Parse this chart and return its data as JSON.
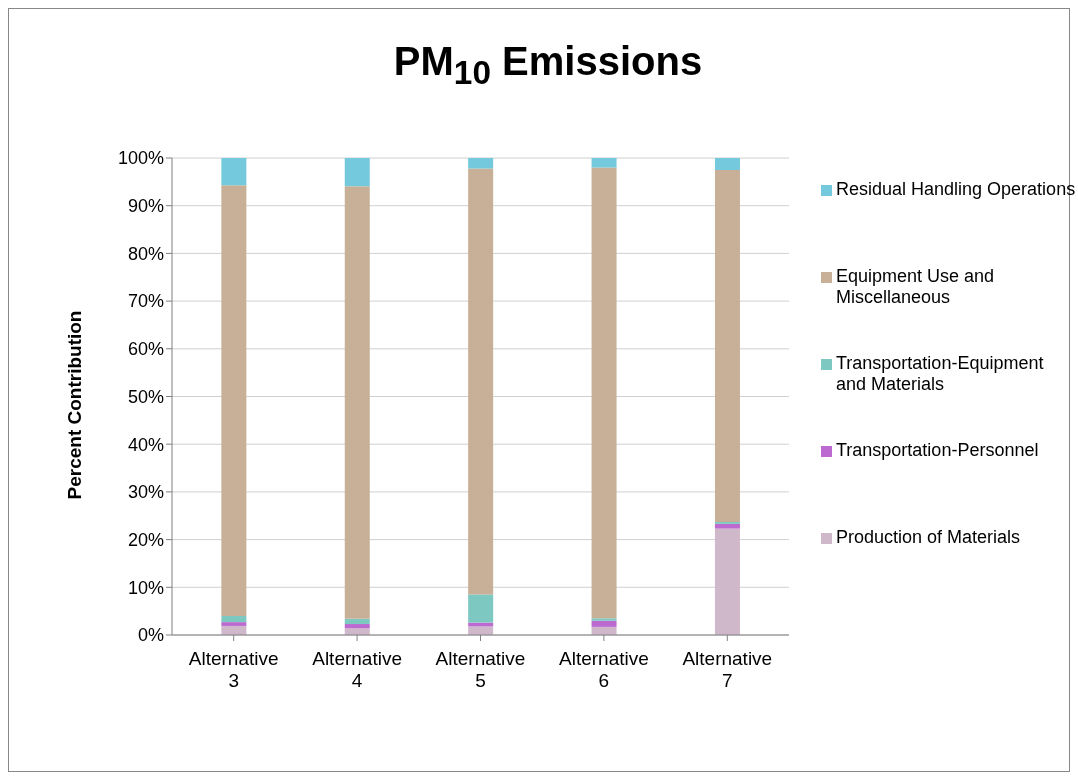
{
  "chart_data": {
    "type": "bar",
    "title": "PM$_{10}$ Emissions",
    "ylabel": "Percent Contribution",
    "categories": [
      "Alternative 3",
      "Alternative 4",
      "Alternative 5",
      "Alternative 6",
      "Alternative 7"
    ],
    "stacked": true,
    "series": [
      {
        "name": "Production of Materials",
        "color": "#d0b8cb",
        "values": [
          1.9,
          1.4,
          1.8,
          1.7,
          22.3
        ]
      },
      {
        "name": "Transportation-Personnel",
        "color": "#bd6ad0",
        "values": [
          0.8,
          0.9,
          0.8,
          1.3,
          1.0
        ]
      },
      {
        "name": "Transportation-Equipment and Materials",
        "color": "#7dc8c0",
        "values": [
          1.3,
          1.1,
          5.9,
          0.5,
          0.4
        ]
      },
      {
        "name": "Equipment Use and Miscellaneous",
        "color": "#c7b097",
        "values": [
          90.3,
          90.7,
          89.3,
          94.5,
          73.8
        ]
      },
      {
        "name": "Residual Handling Operations",
        "color": "#75c9dd",
        "values": [
          5.7,
          5.9,
          2.2,
          2.0,
          2.5
        ]
      }
    ],
    "ylim": [
      0,
      100
    ],
    "yticks": [
      {
        "value": 0,
        "label": "0%"
      },
      {
        "value": 10,
        "label": "10%"
      },
      {
        "value": 20,
        "label": "20%"
      },
      {
        "value": 30,
        "label": "30%"
      },
      {
        "value": 40,
        "label": "40%"
      },
      {
        "value": 50,
        "label": "50%"
      },
      {
        "value": 60,
        "label": "60%"
      },
      {
        "value": 70,
        "label": "70%"
      },
      {
        "value": 80,
        "label": "80%"
      },
      {
        "value": 90,
        "label": "90%"
      },
      {
        "value": 100,
        "label": "100%"
      }
    ],
    "grid": "y",
    "legend": "right"
  }
}
